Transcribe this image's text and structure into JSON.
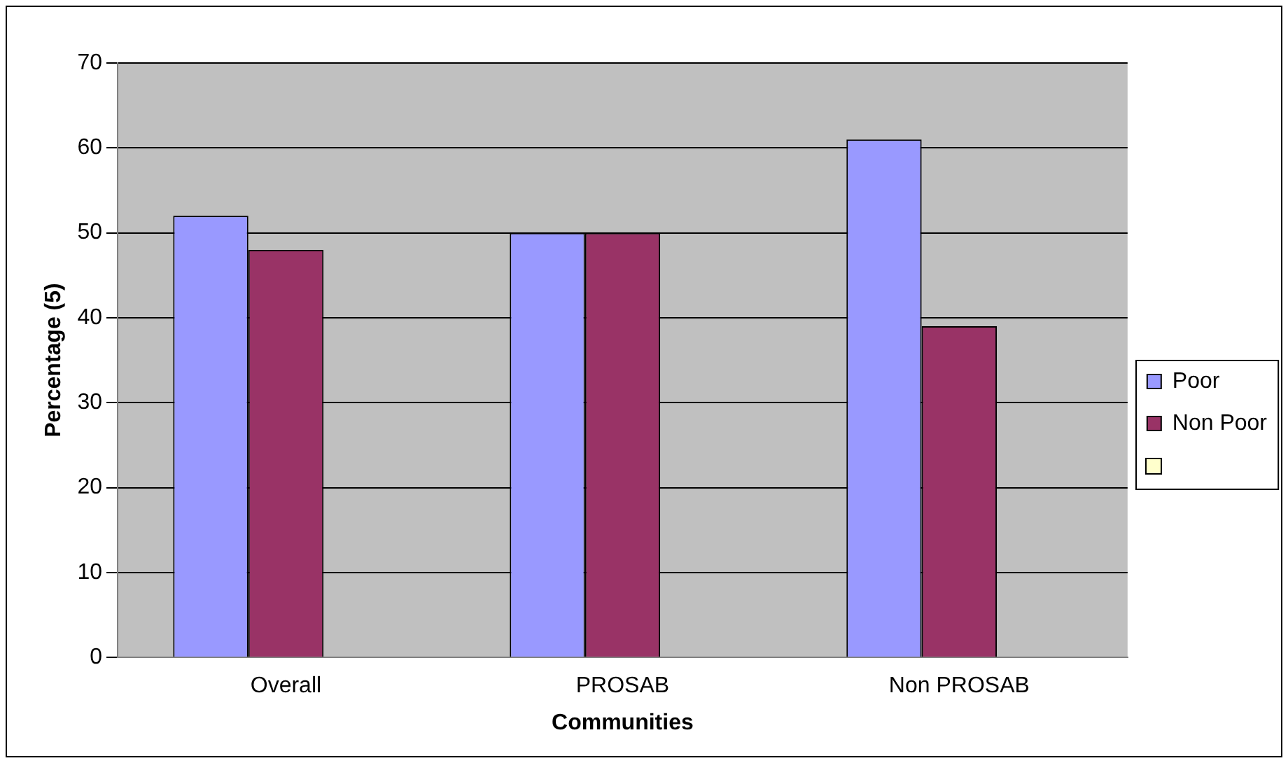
{
  "chart_data": {
    "type": "bar",
    "xlabel": "Communities",
    "ylabel": "Percentage (5)",
    "categories": [
      "Overall",
      "PROSAB",
      "Non PROSAB"
    ],
    "series": [
      {
        "name": "Poor",
        "color": "#9999ff",
        "values": [
          52,
          50,
          61
        ]
      },
      {
        "name": "Non Poor",
        "color": "#993366",
        "values": [
          48,
          50,
          39
        ]
      },
      {
        "color": "#ffffcc",
        "values": [
          null,
          null,
          null
        ]
      }
    ],
    "ylim": [
      0,
      70
    ],
    "yticks": [
      0,
      10,
      20,
      30,
      40,
      50,
      60,
      70
    ],
    "grid": "y",
    "legend": "right"
  }
}
